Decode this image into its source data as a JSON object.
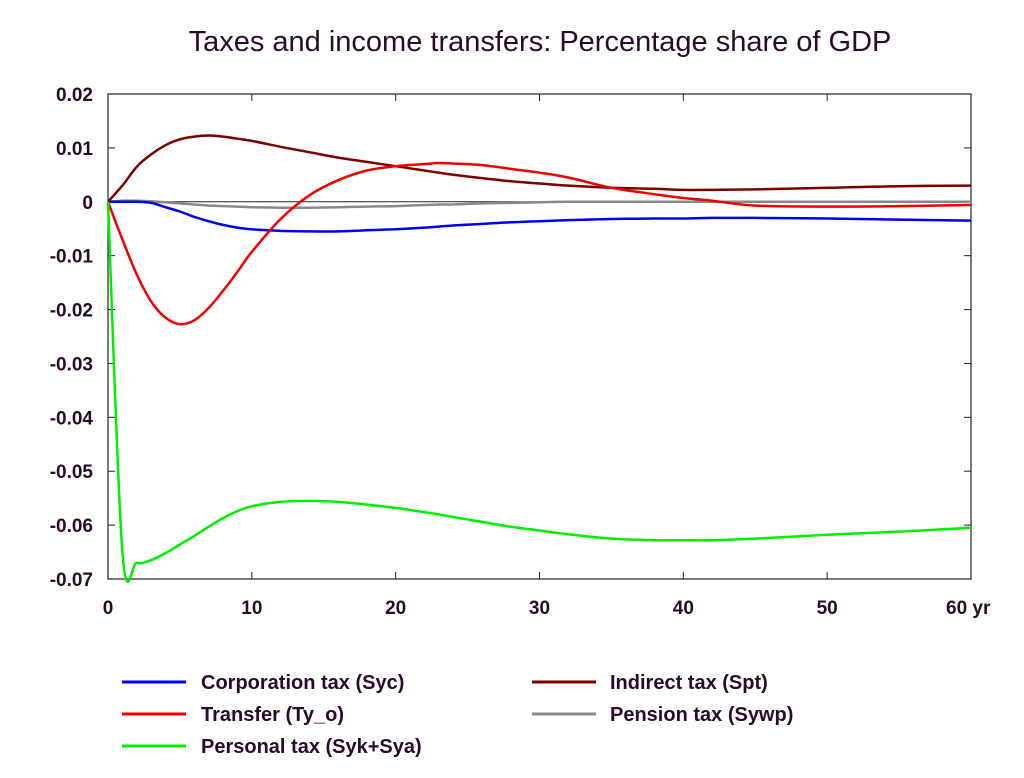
{
  "chart_data": {
    "type": "line",
    "title": "Taxes and income transfers: Percentage share of GDP",
    "xlabel": "",
    "ylabel": "",
    "x_unit_label": "yr",
    "xlim": [
      0,
      60
    ],
    "ylim": [
      -0.07,
      0.02
    ],
    "x_ticks": [
      0,
      10,
      20,
      30,
      40,
      50,
      60
    ],
    "x_tick_labels": [
      "0",
      "10",
      "20",
      "30",
      "40",
      "50",
      "60 yr"
    ],
    "y_ticks": [
      0.02,
      0.01,
      0,
      -0.01,
      -0.02,
      -0.03,
      -0.04,
      -0.05,
      -0.06,
      -0.07
    ],
    "y_tick_labels": [
      "0.02",
      "0.01",
      "0",
      "-0.01",
      "-0.02",
      "-0.03",
      "-0.04",
      "-0.05",
      "-0.06",
      "-0.07"
    ],
    "grid": false,
    "legend_position": "bottom",
    "x": [
      0,
      1,
      2,
      3,
      4,
      5,
      6,
      7,
      8,
      9,
      10,
      12,
      14,
      16,
      18,
      20,
      22,
      23,
      24,
      26,
      28,
      30,
      32,
      35,
      38,
      40,
      42,
      45,
      50,
      55,
      60
    ],
    "series": [
      {
        "name": "Corporation tax (Syc)",
        "color": "#0000ee",
        "values": [
          0,
          0,
          0,
          -0.0002,
          -0.001,
          -0.0018,
          -0.0028,
          -0.0036,
          -0.0043,
          -0.0048,
          -0.0051,
          -0.0054,
          -0.0055,
          -0.0055,
          -0.0053,
          -0.0051,
          -0.0048,
          -0.0046,
          -0.0044,
          -0.0041,
          -0.0038,
          -0.0036,
          -0.0034,
          -0.0032,
          -0.0031,
          -0.0031,
          -0.003,
          -0.003,
          -0.0031,
          -0.0033,
          -0.0035
        ]
      },
      {
        "name": "Indirect tax (Spt)",
        "color": "#7b0000",
        "values": [
          0,
          0.003,
          0.0065,
          0.0088,
          0.0105,
          0.0116,
          0.0121,
          0.0123,
          0.0121,
          0.0117,
          0.0113,
          0.0102,
          0.0092,
          0.0082,
          0.0074,
          0.0066,
          0.0058,
          0.0054,
          0.005,
          0.0044,
          0.0038,
          0.0034,
          0.003,
          0.0026,
          0.0024,
          0.0022,
          0.0022,
          0.0023,
          0.0026,
          0.0029,
          0.003
        ]
      },
      {
        "name": "Transfer (Ty_o)",
        "color": "#ee0000",
        "values": [
          0,
          -0.007,
          -0.0135,
          -0.0185,
          -0.0215,
          -0.0227,
          -0.022,
          -0.0197,
          -0.0165,
          -0.013,
          -0.0093,
          -0.0032,
          0.0012,
          0.004,
          0.0058,
          0.0066,
          0.007,
          0.0072,
          0.0071,
          0.0068,
          0.0061,
          0.0054,
          0.0045,
          0.0026,
          0.0014,
          0.0007,
          0.0002,
          -0.0007,
          -0.0009,
          -0.0008,
          -0.0006
        ]
      },
      {
        "name": "Pension tax (Sywp)",
        "color": "#888888",
        "values": [
          0,
          0.0002,
          0.0002,
          0.0001,
          -0.0001,
          -0.0003,
          -0.0005,
          -0.0007,
          -0.0008,
          -0.0009,
          -0.001,
          -0.0011,
          -0.0011,
          -0.001,
          -0.0009,
          -0.0008,
          -0.0006,
          -0.0005,
          -0.0005,
          -0.0003,
          -0.0002,
          -0.0001,
          0,
          0,
          0,
          0,
          0,
          0,
          0,
          0,
          0
        ]
      },
      {
        "name": "Personal tax (Syk+Sya)",
        "color": "#00ee00",
        "values": [
          0,
          -0.065,
          -0.067,
          -0.0665,
          -0.0652,
          -0.0636,
          -0.062,
          -0.0603,
          -0.0587,
          -0.0574,
          -0.0565,
          -0.0557,
          -0.0555,
          -0.0557,
          -0.0562,
          -0.0568,
          -0.0576,
          -0.058,
          -0.0585,
          -0.0594,
          -0.0603,
          -0.061,
          -0.0617,
          -0.0625,
          -0.0628,
          -0.0628,
          -0.0628,
          -0.0625,
          -0.0618,
          -0.0612,
          -0.0605
        ]
      }
    ],
    "legend_layout": [
      [
        0,
        1
      ],
      [
        2,
        3
      ],
      [
        4
      ]
    ]
  }
}
